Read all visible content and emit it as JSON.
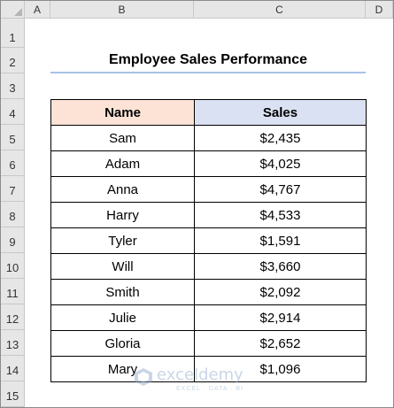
{
  "columns": [
    "A",
    "B",
    "C",
    "D"
  ],
  "rows": [
    "1",
    "2",
    "3",
    "4",
    "5",
    "6",
    "7",
    "8",
    "9",
    "10",
    "11",
    "12",
    "13",
    "14",
    "15"
  ],
  "sheet": {
    "title": "Employee Sales Performance",
    "headers": {
      "name": "Name",
      "sales": "Sales"
    },
    "records": [
      {
        "name": "Sam",
        "sales": "$2,435"
      },
      {
        "name": "Adam",
        "sales": "$4,025"
      },
      {
        "name": "Anna",
        "sales": "$4,767"
      },
      {
        "name": "Harry",
        "sales": "$4,533"
      },
      {
        "name": "Tyler",
        "sales": "$1,591"
      },
      {
        "name": "Will",
        "sales": "$3,660"
      },
      {
        "name": "Smith",
        "sales": "$2,092"
      },
      {
        "name": "Julie",
        "sales": "$2,914"
      },
      {
        "name": "Gloria",
        "sales": "$2,652"
      },
      {
        "name": "Mary",
        "sales": "$1,096"
      }
    ]
  },
  "watermark": {
    "name": "exceldemy",
    "tagline": "EXCEL · DATA · BI"
  },
  "colors": {
    "name_header": "#fce3d6",
    "sales_header": "#d9e1f2",
    "title_underline": "#a9c1e5"
  }
}
